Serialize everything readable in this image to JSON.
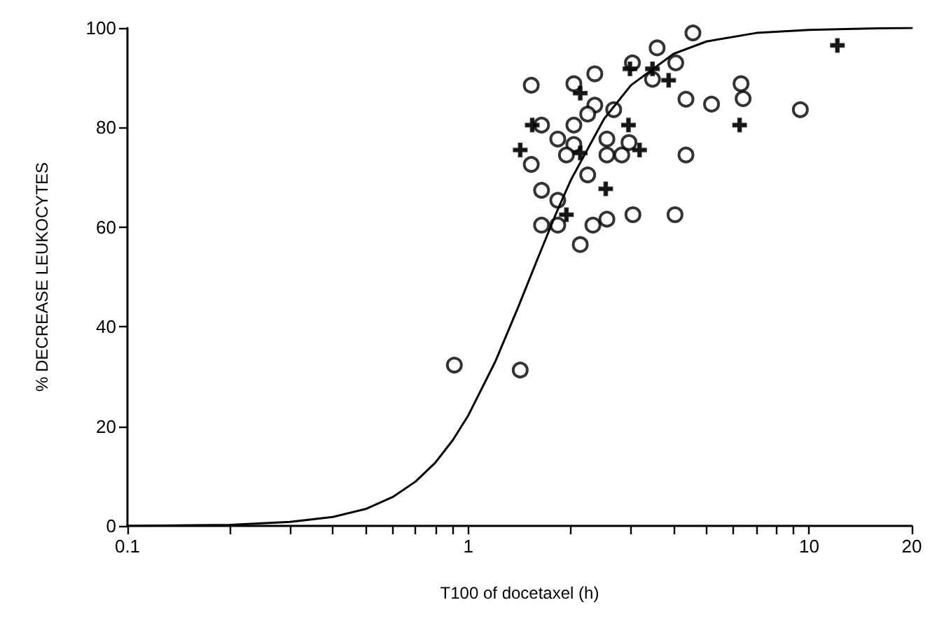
{
  "chart_data": {
    "type": "scatter",
    "xlabel": "T100 of docetaxel (h)",
    "ylabel": "% DECREASE LEUKOCYTES",
    "xlim": [
      0.1,
      20
    ],
    "ylim": [
      0,
      100
    ],
    "log": "x",
    "xticks": [
      0.1,
      {
        "value": 0.2,
        "label": null
      },
      {
        "value": 0.3,
        "label": null
      },
      {
        "value": 0.4,
        "label": null
      },
      {
        "value": 0.5,
        "label": null
      },
      {
        "value": 0.6,
        "label": null
      },
      {
        "value": 0.7,
        "label": null
      },
      {
        "value": 0.8,
        "label": null
      },
      {
        "value": 0.9,
        "label": null
      },
      1,
      {
        "value": 2,
        "label": null
      },
      {
        "value": 3,
        "label": null
      },
      {
        "value": 4,
        "label": null
      },
      {
        "value": 5,
        "label": null
      },
      {
        "value": 6,
        "label": null
      },
      {
        "value": 7,
        "label": null
      },
      {
        "value": 8,
        "label": null
      },
      {
        "value": 9,
        "label": null
      },
      10,
      20
    ],
    "yticks": [
      0,
      20,
      40,
      60,
      80,
      100
    ],
    "grid": false,
    "series": [
      {
        "marker": "circle",
        "color": "#000000",
        "x": [
          1.53,
          2.04,
          2.35,
          3.03,
          3.58,
          4.56,
          4.06,
          3.47,
          2.35,
          2.67,
          2.24,
          4.35,
          5.17,
          6.31,
          6.4,
          1.64,
          2.04,
          1.83,
          2.04,
          2.55,
          1.94,
          2.55,
          2.82,
          2.96,
          4.35,
          1.53,
          2.24,
          1.64,
          1.83,
          1.64,
          1.83,
          2.32,
          2.55,
          3.04,
          4.04,
          2.13,
          0.91,
          1.42,
          9.42
        ],
        "values": [
          88.5,
          88.8,
          90.8,
          93,
          96,
          99,
          93,
          89.7,
          84.5,
          83.6,
          82.7,
          85.7,
          84.7,
          88.8,
          85.8,
          80.5,
          80.5,
          77.7,
          76.6,
          77.7,
          74.5,
          74.5,
          74.5,
          77,
          74.5,
          72.6,
          70.5,
          67.4,
          65.4,
          60.4,
          60.4,
          60.4,
          61.6,
          62.5,
          62.5,
          56.5,
          32.3,
          31.3,
          83.6
        ]
      },
      {
        "marker": "cross",
        "color": "#000000",
        "x": [
          2.13,
          2.98,
          3.47,
          3.87,
          1.54,
          2.95,
          6.25,
          1.42,
          3.18,
          2.13,
          2.53,
          1.94,
          12.1
        ],
        "values": [
          86.9,
          91.8,
          91.8,
          89.5,
          80.5,
          80.5,
          80.5,
          75.5,
          75.5,
          74.9,
          67.7,
          62.5,
          96.5
        ]
      },
      {
        "type": "line",
        "marker": "none",
        "line_style": "solid",
        "color": "#000000",
        "x": [
          0.1,
          0.2,
          0.3,
          0.4,
          0.5,
          0.6,
          0.7,
          0.8,
          0.9,
          1,
          1.2,
          1.4,
          1.6,
          1.8,
          2,
          2.5,
          3,
          4,
          5,
          7,
          10,
          15,
          20
        ],
        "values": [
          0,
          0.2,
          0.8,
          1.8,
          3.4,
          5.8,
          8.9,
          12.7,
          17.2,
          22.2,
          33.0,
          43.9,
          53.8,
          62.4,
          69.5,
          81.7,
          88.5,
          94.8,
          97.3,
          99.0,
          99.6,
          99.9,
          100
        ]
      }
    ]
  }
}
